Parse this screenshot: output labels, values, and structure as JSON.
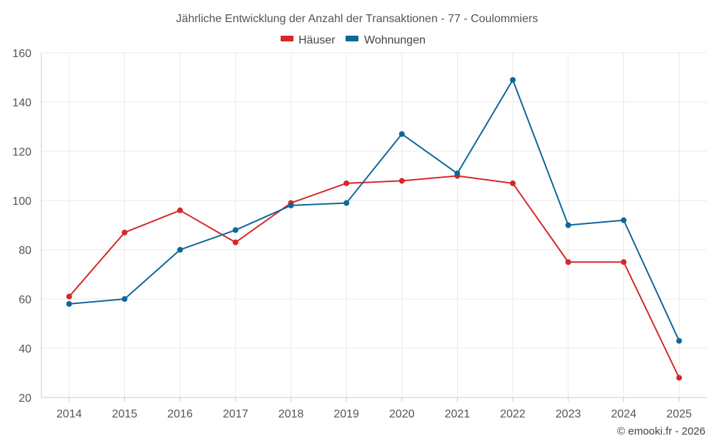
{
  "chart_data": {
    "type": "line",
    "title": "Jährliche Entwicklung der Anzahl der Transaktionen - 77 - Coulommiers",
    "categories": [
      "2014",
      "2015",
      "2016",
      "2017",
      "2018",
      "2019",
      "2020",
      "2021",
      "2022",
      "2023",
      "2024",
      "2025"
    ],
    "series": [
      {
        "name": "Häuser",
        "color": "#d62728",
        "values": [
          61,
          87,
          96,
          83,
          99,
          107,
          108,
          110,
          107,
          75,
          75,
          28
        ]
      },
      {
        "name": "Wohnungen",
        "color": "#0e6699",
        "values": [
          58,
          60,
          80,
          88,
          98,
          99,
          127,
          111,
          149,
          90,
          92,
          43
        ]
      }
    ],
    "ylim": [
      20,
      160
    ],
    "yticks": [
      20,
      40,
      60,
      80,
      100,
      120,
      140,
      160
    ],
    "ytick_labels": [
      "20",
      "40",
      "60",
      "80",
      "100",
      "120",
      "140",
      "160"
    ],
    "xlabel": "",
    "ylabel": "",
    "grid": true,
    "legend_position": "top-center"
  },
  "credit": "© emooki.fr - 2026"
}
